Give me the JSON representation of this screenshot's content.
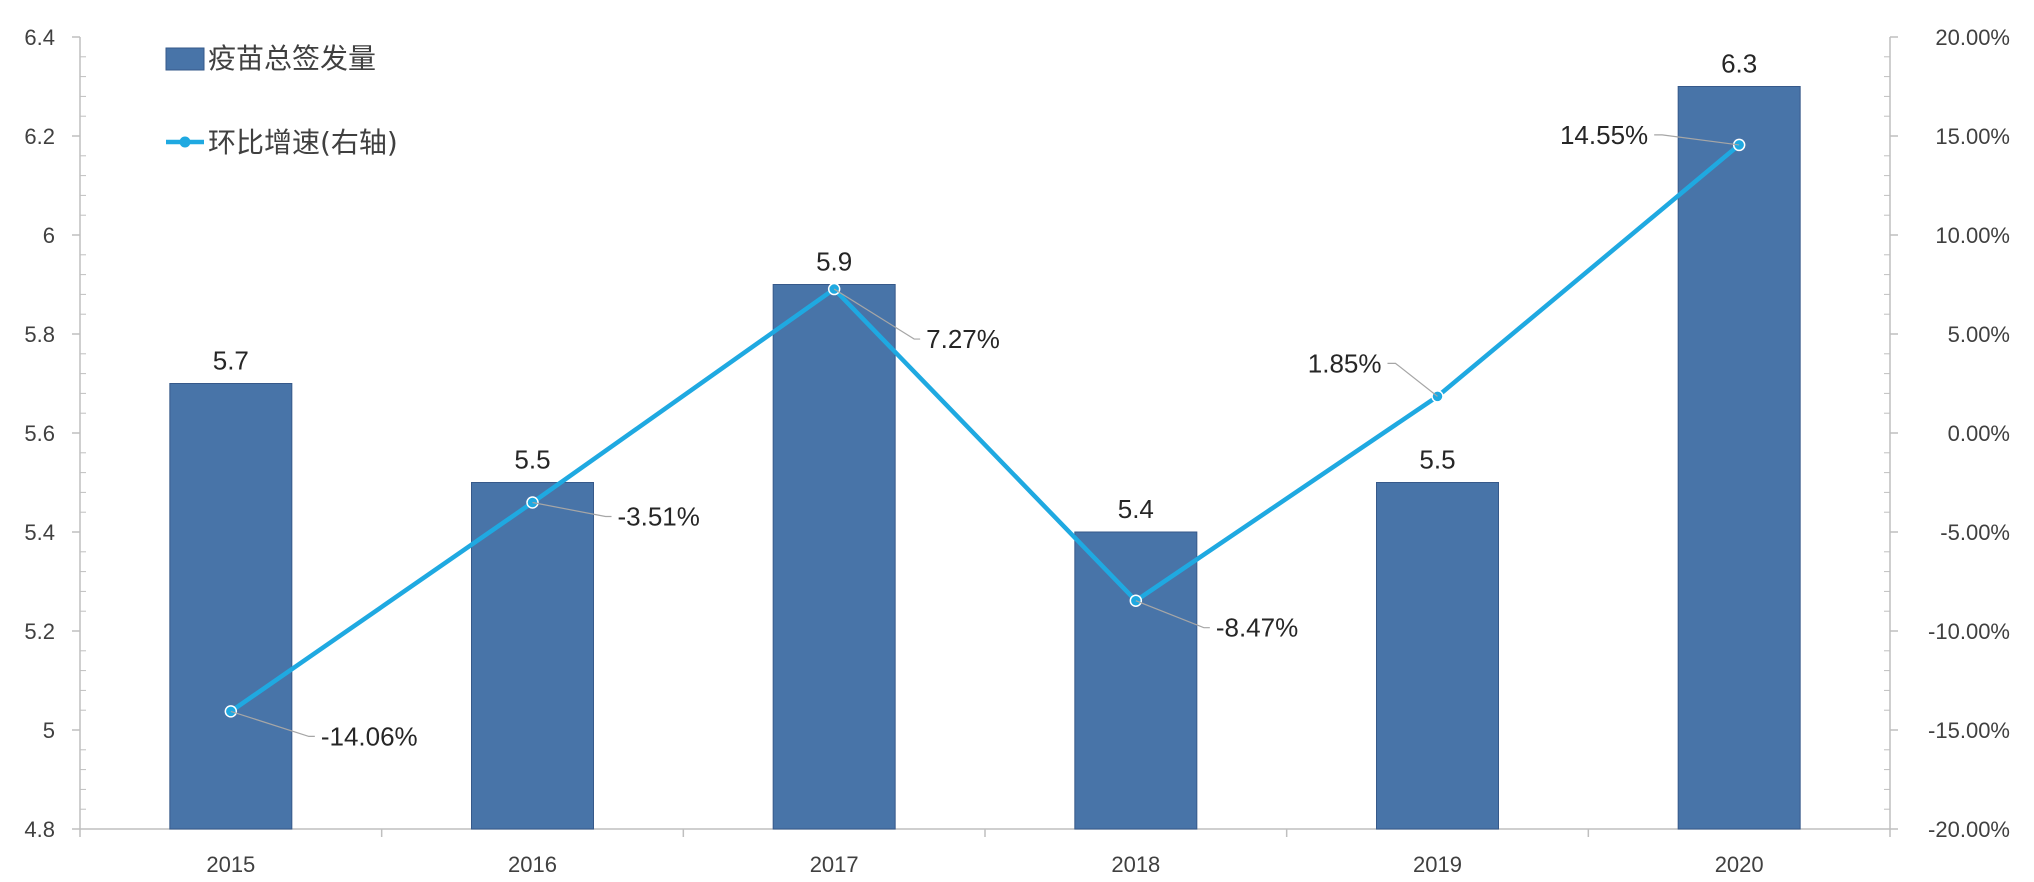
{
  "chart_data": {
    "type": "bar",
    "categories": [
      "2015",
      "2016",
      "2017",
      "2018",
      "2019",
      "2020"
    ],
    "series": [
      {
        "name": "疫苗总签发量",
        "kind": "bar",
        "axis": "left",
        "color": "#4874A8",
        "values": [
          5.7,
          5.5,
          5.9,
          5.4,
          5.5,
          6.3
        ],
        "labels": [
          "5.7",
          "5.5",
          "5.9",
          "5.4",
          "5.5",
          "6.3"
        ]
      },
      {
        "name": "环比增速(右轴)",
        "kind": "line",
        "axis": "right",
        "color": "#1FA9E1",
        "values": [
          -14.06,
          -3.51,
          7.27,
          -8.47,
          1.85,
          14.55
        ],
        "labels": [
          "-14.06%",
          "-3.51%",
          "7.27%",
          "-8.47%",
          "1.85%",
          "14.55%"
        ]
      }
    ],
    "y_left": {
      "min": 4.8,
      "max": 6.4,
      "ticks": [
        4.8,
        5,
        5.2,
        5.4,
        5.6,
        5.8,
        6,
        6.2,
        6.4
      ],
      "tick_labels": [
        "4.8",
        "5",
        "5.2",
        "5.4",
        "5.6",
        "5.8",
        "6",
        "6.2",
        "6.4"
      ]
    },
    "y_right": {
      "min": -20,
      "max": 20,
      "ticks": [
        -20,
        -15,
        -10,
        -5,
        0,
        5,
        10,
        15,
        20
      ],
      "tick_labels": [
        "-20.00%",
        "-15.00%",
        "-10.00%",
        "-5.00%",
        "0.00%",
        "5.00%",
        "10.00%",
        "15.00%",
        "20.00%"
      ]
    },
    "legend": "top-left",
    "grid": false,
    "title": "",
    "xlabel": "",
    "ylabel": ""
  },
  "colors": {
    "bar": "#4874A8",
    "bar_edge": "#36598A",
    "line": "#1FA9E1",
    "axis": "#BFBFBF",
    "leader": "#A6A6A6"
  }
}
